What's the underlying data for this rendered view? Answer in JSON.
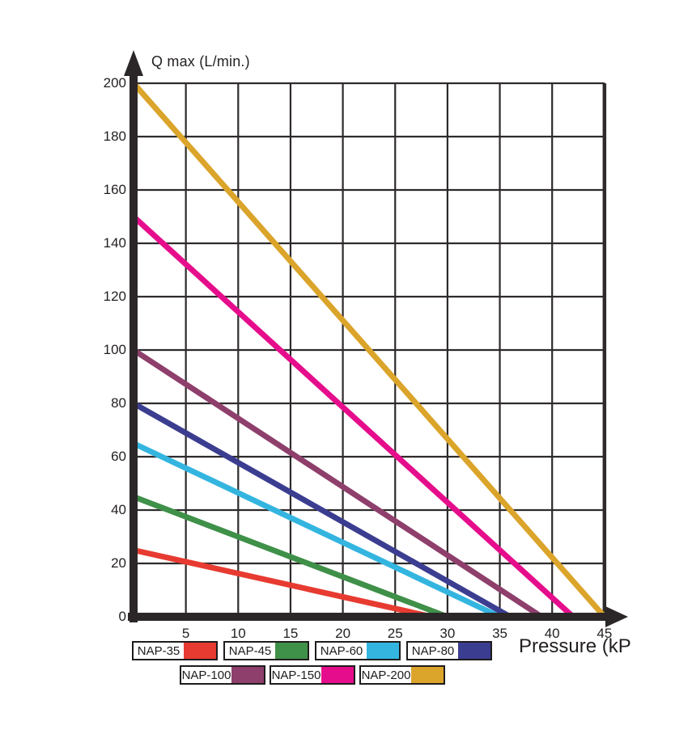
{
  "chart_data": {
    "type": "line",
    "title": "Q max (L/min.)",
    "xlabel": "Pressure (kP",
    "ylabel": "Q max (L/min.)",
    "xlim": [
      0,
      45
    ],
    "ylim": [
      0,
      200
    ],
    "x_ticks": [
      5,
      10,
      15,
      20,
      25,
      30,
      35,
      40,
      45
    ],
    "y_ticks": [
      0,
      20,
      40,
      60,
      80,
      100,
      120,
      140,
      160,
      180,
      200
    ],
    "grid": true,
    "grid_x_step": 5,
    "grid_y_step": 20,
    "legend_position": "bottom",
    "series": [
      {
        "name": "NAP-35",
        "color": "#e73b31",
        "points": [
          [
            0,
            25
          ],
          [
            28.5,
            0
          ]
        ]
      },
      {
        "name": "NAP-45",
        "color": "#3f9048",
        "points": [
          [
            0,
            45
          ],
          [
            30,
            0
          ]
        ]
      },
      {
        "name": "NAP-60",
        "color": "#33b5e0",
        "points": [
          [
            0,
            65
          ],
          [
            35,
            0
          ]
        ]
      },
      {
        "name": "NAP-80",
        "color": "#3b3d90",
        "points": [
          [
            0,
            80
          ],
          [
            36,
            0
          ]
        ]
      },
      {
        "name": "NAP-100",
        "color": "#8e3f6b",
        "points": [
          [
            0,
            100
          ],
          [
            39,
            0
          ]
        ]
      },
      {
        "name": "NAP-150",
        "color": "#e60d8c",
        "points": [
          [
            0,
            150
          ],
          [
            42,
            0
          ]
        ]
      },
      {
        "name": "NAP-200",
        "color": "#dba42a",
        "points": [
          [
            0,
            200
          ],
          [
            45,
            0
          ]
        ]
      }
    ],
    "legend_rows": [
      [
        "NAP-35",
        "NAP-45",
        "NAP-60",
        "NAP-80"
      ],
      [
        "NAP-100",
        "NAP-150",
        "NAP-200"
      ]
    ]
  },
  "colors": {
    "axis": "#2b2728",
    "grid": "#2e2a2b",
    "text": "#231f20",
    "background": "#ffffff"
  }
}
